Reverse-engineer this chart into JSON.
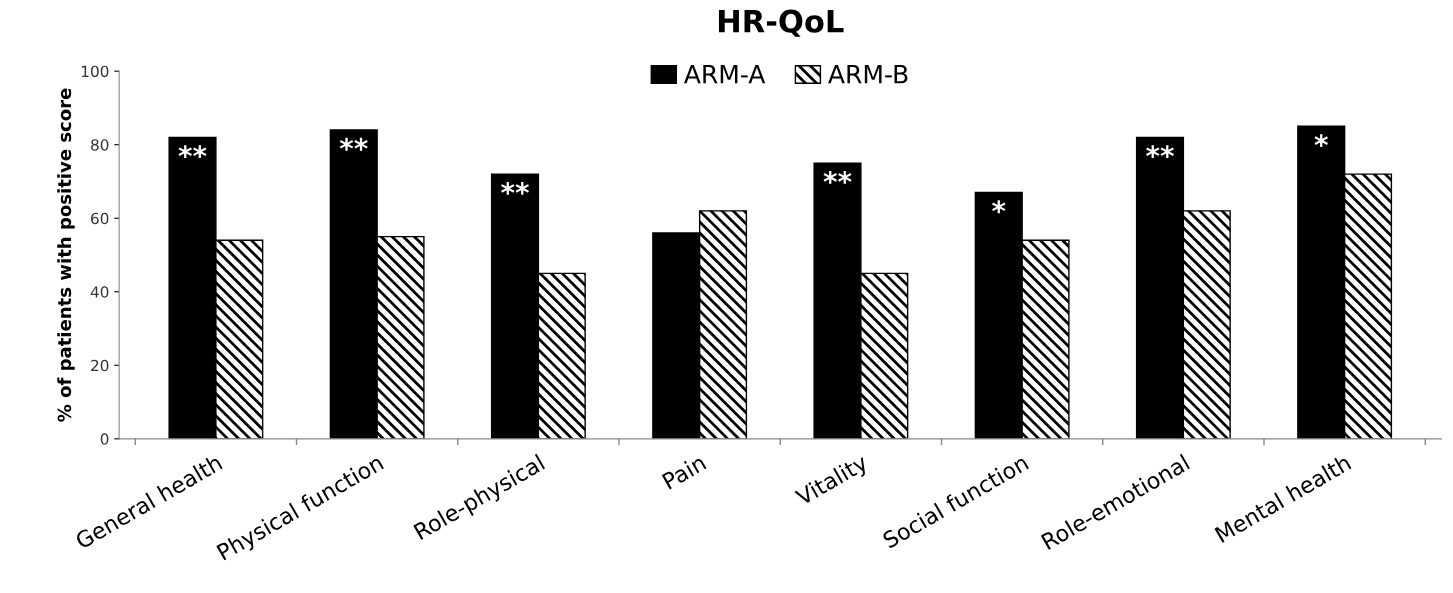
{
  "chart_data": {
    "type": "bar",
    "title": "HR-QoL",
    "ylabel": "% of patients with positive score",
    "categories": [
      "General health",
      "Physical function",
      "Role-physical",
      "Pain",
      "Vitality",
      "Social function",
      "Role-emotional",
      "Mental health"
    ],
    "series": [
      {
        "name": "ARM-A",
        "color": "#000000",
        "values": [
          82,
          84,
          72,
          56,
          75,
          67,
          82,
          85
        ]
      },
      {
        "name": "ARM-B",
        "color": "#000000",
        "values": [
          54,
          55,
          45,
          62,
          45,
          54,
          62,
          72
        ]
      }
    ],
    "annotations": [
      {
        "text": "**",
        "x": "General health",
        "y": 82
      },
      {
        "text": "**",
        "x": "Physical function",
        "y": 84
      },
      {
        "text": "**",
        "x": "Role-physical",
        "y": 72
      },
      {
        "text": "**",
        "x": "Vitality",
        "y": 75
      },
      {
        "text": "*",
        "x": "Social function",
        "y": 67
      },
      {
        "text": "**",
        "x": "Role-emotional",
        "y": 82
      },
      {
        "text": "*",
        "x": "Mental health",
        "y": 85
      }
    ],
    "ylim": [
      0,
      100
    ],
    "yticks": [
      0,
      20,
      40,
      60,
      80,
      100
    ],
    "grid": false,
    "legend": "top"
  }
}
